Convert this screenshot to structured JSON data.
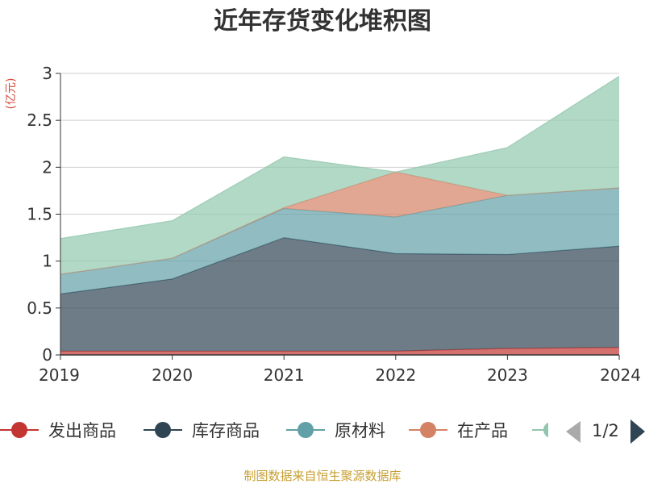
{
  "chart_data": {
    "type": "area",
    "stacked": true,
    "title": "近年存货变化堆积图",
    "unit_label": "(亿元)",
    "x": [
      "2019",
      "2020",
      "2021",
      "2022",
      "2023",
      "2024"
    ],
    "ylim": [
      0,
      3
    ],
    "y_ticks": [
      "0",
      "0.5",
      "1",
      "1.5",
      "2",
      "2.5",
      "3"
    ],
    "grid": true,
    "series": [
      {
        "name": "发出商品",
        "color": "#c23531",
        "values": [
          0.04,
          0.04,
          0.04,
          0.04,
          0.07,
          0.08
        ]
      },
      {
        "name": "库存商品",
        "color": "#2f4554",
        "values": [
          0.61,
          0.77,
          1.21,
          1.04,
          1.0,
          1.08
        ]
      },
      {
        "name": "原材料",
        "color": "#61a0a8",
        "values": [
          0.21,
          0.22,
          0.31,
          0.39,
          0.63,
          0.62
        ]
      },
      {
        "name": "在产品",
        "color": "#d48265",
        "values": [
          0.0,
          0.0,
          0.01,
          0.48,
          0.0,
          0.0
        ]
      },
      {
        "name": "",
        "color": "#91c7ae",
        "values": [
          0.38,
          0.4,
          0.54,
          0.0,
          0.51,
          1.19
        ]
      }
    ],
    "legend": {
      "position": "bottom",
      "page": "1/2"
    }
  },
  "source": "制图数据来自恒生聚源数据库"
}
